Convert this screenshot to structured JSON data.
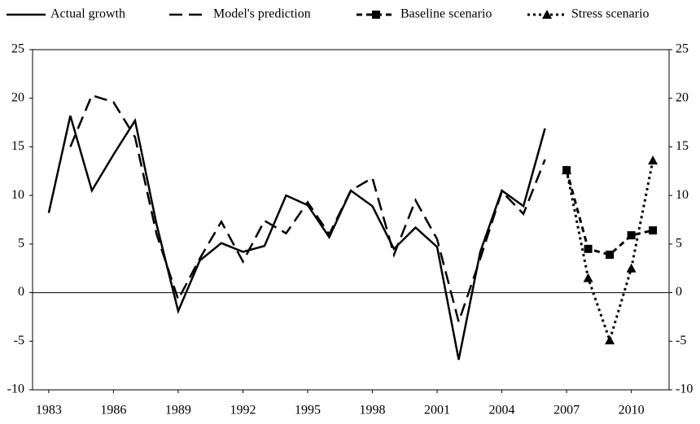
{
  "chart_data": {
    "type": "line",
    "x": [
      1983,
      1984,
      1985,
      1986,
      1987,
      1988,
      1989,
      1990,
      1991,
      1992,
      1993,
      1994,
      1995,
      1996,
      1997,
      1998,
      1999,
      2000,
      2001,
      2002,
      2003,
      2004,
      2005,
      2006,
      2007,
      2008,
      2009,
      2010,
      2011
    ],
    "series": [
      {
        "name": "Actual growth",
        "color": "#000000",
        "style": "solid",
        "marker": "none",
        "values": [
          8.2,
          18.2,
          10.5,
          14.2,
          17.7,
          7,
          -1.9,
          3.3,
          5.1,
          4.2,
          4.8,
          10,
          9,
          5.7,
          10.5,
          8.9,
          4.5,
          6.7,
          4.7,
          -6.9,
          4.2,
          10.5,
          8.9,
          16.9,
          null,
          null,
          null,
          null,
          null
        ]
      },
      {
        "name": "Model's prediction",
        "color": "#000000",
        "style": "longdash",
        "marker": "none",
        "values": [
          null,
          15,
          20.3,
          19.6,
          16,
          6,
          -0.7,
          3.5,
          7.3,
          3.2,
          7.4,
          6.1,
          9.3,
          6,
          10.5,
          11.8,
          3.9,
          9.5,
          5.5,
          -3,
          3.5,
          10.4,
          8.1,
          13.7,
          null,
          null,
          null,
          null,
          null
        ]
      },
      {
        "name": "Baseline scenario",
        "color": "#000000",
        "style": "dash",
        "marker": "square",
        "values": [
          null,
          null,
          null,
          null,
          null,
          null,
          null,
          null,
          null,
          null,
          null,
          null,
          null,
          null,
          null,
          null,
          null,
          null,
          null,
          null,
          null,
          null,
          null,
          null,
          12.6,
          4.5,
          3.9,
          5.9,
          6.4
        ]
      },
      {
        "name": "Stress scenario",
        "color": "#000000",
        "style": "dot",
        "marker": "triangle",
        "values": [
          null,
          null,
          null,
          null,
          null,
          null,
          null,
          null,
          null,
          null,
          null,
          null,
          null,
          null,
          null,
          null,
          null,
          null,
          null,
          null,
          null,
          null,
          null,
          null,
          12.6,
          1.5,
          -4.9,
          2.5,
          13.6
        ]
      }
    ],
    "xlim": [
      1982.25,
      2011.75
    ],
    "xticks": [
      1983,
      1986,
      1989,
      1992,
      1995,
      1998,
      2001,
      2004,
      2007,
      2010
    ],
    "ylim": [
      -10,
      25
    ],
    "yticks": [
      -10,
      -5,
      0,
      5,
      10,
      15,
      20,
      25
    ],
    "y2lim": [
      -10,
      25
    ],
    "y2ticks": [
      -10,
      -5,
      0,
      5,
      10,
      15,
      20,
      25
    ],
    "legend": "top"
  }
}
